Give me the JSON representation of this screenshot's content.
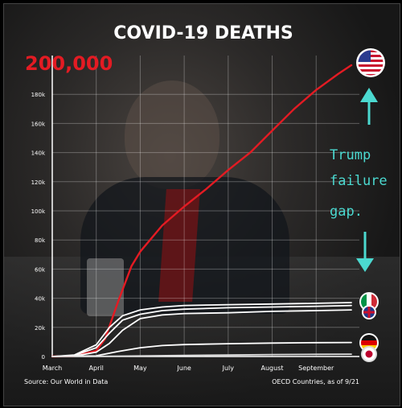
{
  "chart_data": {
    "type": "line",
    "title": "COVID-19 DEATHS",
    "highlight_value": "200,000",
    "x_ticks": [
      "March",
      "April",
      "May",
      "June",
      "July",
      "August",
      "September"
    ],
    "y_ticks": [
      "0",
      "20k",
      "40k",
      "60k",
      "80k",
      "100k",
      "120k",
      "140k",
      "160k",
      "180k"
    ],
    "ylim": [
      0,
      200000
    ],
    "xlim": [
      0,
      6.8
    ],
    "grid": true,
    "source": "Source: Our World in Data",
    "footnote": "OECD Countries, as of 9/21",
    "series": [
      {
        "color": "#e31b23",
        "points": [
          [
            0,
            0
          ],
          [
            0.5,
            300
          ],
          [
            1,
            4000
          ],
          [
            1.2,
            12000
          ],
          [
            1.5,
            38000
          ],
          [
            1.8,
            62000
          ],
          [
            2,
            72000
          ],
          [
            2.5,
            90000
          ],
          [
            3,
            103000
          ],
          [
            3.5,
            115000
          ],
          [
            4,
            128000
          ],
          [
            4.5,
            140000
          ],
          [
            5,
            155000
          ],
          [
            5.5,
            170000
          ],
          [
            6,
            183000
          ],
          [
            6.5,
            194000
          ],
          [
            6.8,
            200000
          ]
        ]
      },
      {
        "color": "#ffffff",
        "points": [
          [
            0,
            0
          ],
          [
            0.5,
            1000
          ],
          [
            1,
            8000
          ],
          [
            1.3,
            20000
          ],
          [
            1.6,
            28000
          ],
          [
            2,
            32000
          ],
          [
            2.5,
            34000
          ],
          [
            3,
            35000
          ],
          [
            4,
            35600
          ],
          [
            5,
            36000
          ],
          [
            6,
            36500
          ],
          [
            6.8,
            37000
          ]
        ]
      },
      {
        "color": "#ffffff",
        "points": [
          [
            0,
            0
          ],
          [
            0.5,
            800
          ],
          [
            1,
            6000
          ],
          [
            1.3,
            16000
          ],
          [
            1.6,
            25000
          ],
          [
            2,
            29000
          ],
          [
            2.5,
            31500
          ],
          [
            3,
            32500
          ],
          [
            4,
            33500
          ],
          [
            5,
            34000
          ],
          [
            6,
            34500
          ],
          [
            6.8,
            35000
          ]
        ]
      },
      {
        "color": "#ffffff",
        "points": [
          [
            0,
            0
          ],
          [
            0.5,
            300
          ],
          [
            1,
            3000
          ],
          [
            1.3,
            9000
          ],
          [
            1.6,
            18000
          ],
          [
            2,
            26000
          ],
          [
            2.5,
            28500
          ],
          [
            3,
            29500
          ],
          [
            4,
            30000
          ],
          [
            5,
            31000
          ],
          [
            6,
            31500
          ],
          [
            6.8,
            32000
          ]
        ]
      },
      {
        "color": "#ffffff",
        "points": [
          [
            0,
            0
          ],
          [
            1,
            500
          ],
          [
            1.5,
            3500
          ],
          [
            2,
            6000
          ],
          [
            2.5,
            7500
          ],
          [
            3,
            8200
          ],
          [
            4,
            8800
          ],
          [
            5,
            9200
          ],
          [
            6,
            9500
          ],
          [
            6.8,
            9600
          ]
        ]
      },
      {
        "color": "#dddddd",
        "points": [
          [
            0,
            0
          ],
          [
            1,
            100
          ],
          [
            2,
            400
          ],
          [
            3,
            800
          ],
          [
            4,
            1000
          ],
          [
            5,
            1300
          ],
          [
            6,
            1500
          ],
          [
            6.8,
            1600
          ]
        ]
      }
    ]
  },
  "annotation": {
    "lines": [
      "Trump",
      "failure",
      "gap."
    ]
  },
  "colors": {
    "accent": "#e31b23",
    "annotation": "#4bd9d0"
  }
}
